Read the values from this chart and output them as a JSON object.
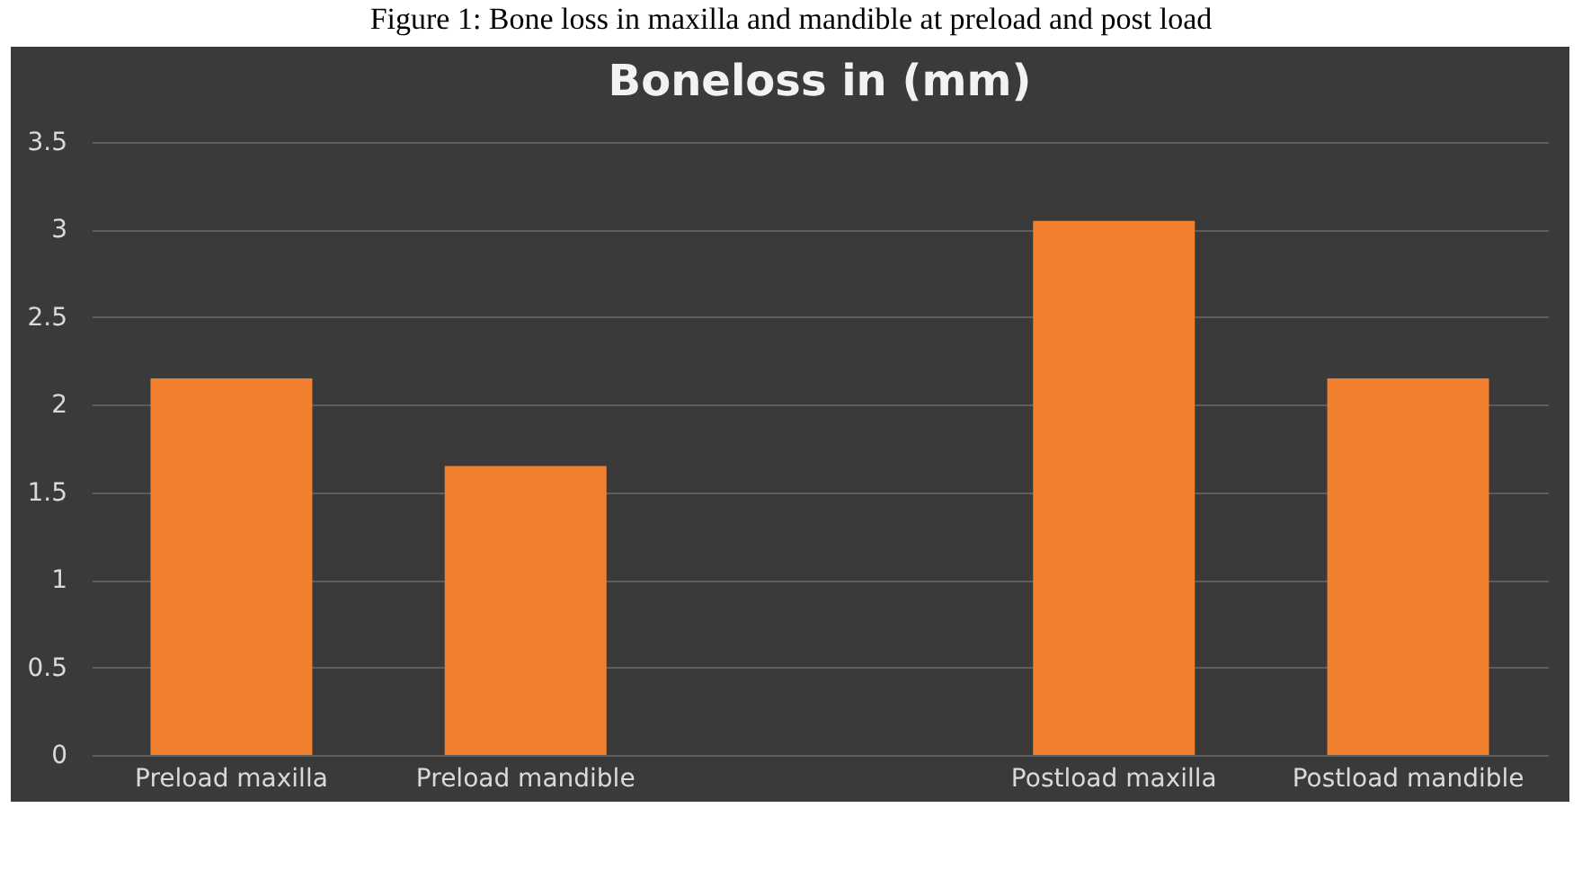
{
  "chart_data": {
    "type": "bar",
    "title": "Boneloss in (mm)",
    "annotations": [
      "Figure 1: Bone loss in maxilla and mandible at preload and post load"
    ],
    "categories": [
      "Preload maxilla",
      "Preload mandible",
      null,
      "Postload maxilla",
      "Postload mandible"
    ],
    "values": [
      2.15,
      1.65,
      null,
      3.05,
      2.15
    ],
    "color": "#f07f2e",
    "ylim": [
      0,
      3.5
    ],
    "yticks": [
      0,
      0.5,
      1,
      1.5,
      2,
      2.5,
      3,
      3.5
    ],
    "grid": "y"
  }
}
